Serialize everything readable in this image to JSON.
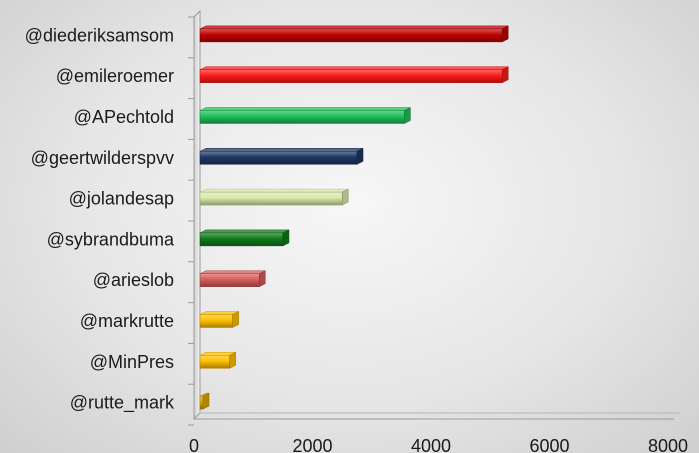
{
  "chart_data": {
    "type": "bar",
    "orientation": "horizontal",
    "categories": [
      "@diederiksamsom",
      "@emileroemer",
      "@APechtold",
      "@geertwilderspvv",
      "@jolandesap",
      "@sybrandbuma",
      "@arieslob",
      "@markrutte",
      "@MinPres",
      "@rutte_mark"
    ],
    "values": [
      5100,
      5100,
      3450,
      2650,
      2400,
      1400,
      1000,
      550,
      500,
      50
    ],
    "colors": [
      "#c00000",
      "#ff1a1a",
      "#1fbf5a",
      "#1f3763",
      "#d8eaa8",
      "#0f7a1a",
      "#d65c5c",
      "#ffc000",
      "#ffc000",
      "#e0a800"
    ],
    "xlim": [
      0,
      8000
    ],
    "xticks": [
      "0",
      "2000",
      "4000",
      "6000",
      "8000"
    ],
    "title": "",
    "xlabel": "",
    "ylabel": "",
    "grid": false,
    "legend": "none"
  }
}
